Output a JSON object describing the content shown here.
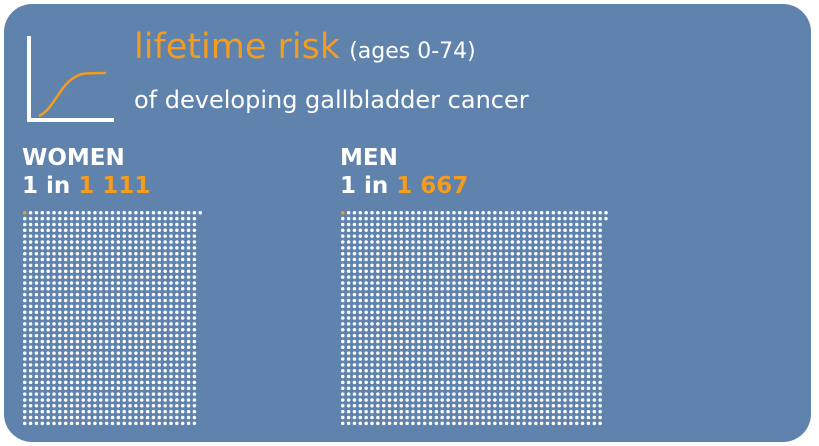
{
  "title": {
    "highlight": "lifetime risk",
    "qualifier": "(ages 0-74)",
    "subtitle": "of developing gallbladder cancer"
  },
  "icon": "cumulative-risk-curve-icon",
  "groups": [
    {
      "key": "women",
      "label": "WOMEN",
      "prefix": "1 in",
      "number": "1 111",
      "risk_denominator": 1111,
      "highlighted_count": 1
    },
    {
      "key": "men",
      "label": "MEN",
      "prefix": "1 in",
      "number": "1 667",
      "risk_denominator": 1667,
      "highlighted_count": 1
    }
  ],
  "colors": {
    "background": "#5f83ac",
    "accent": "#f39c1f",
    "dot": "#ffffff",
    "text": "#ffffff"
  }
}
